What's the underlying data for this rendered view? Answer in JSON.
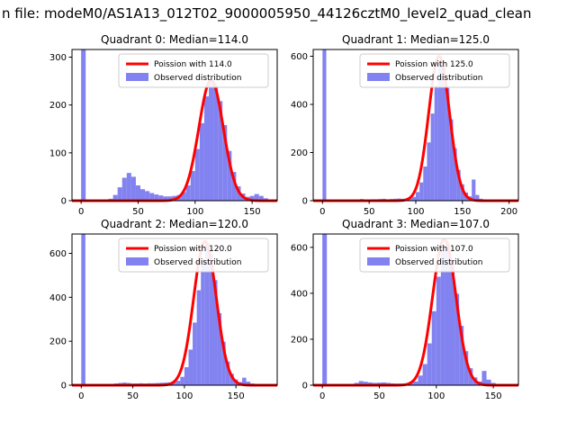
{
  "figure_title": "n file: modeM0/AS1A13_012T02_9000005950_44126cztM0_level2_quad_clean",
  "colors": {
    "background": "#ffffff",
    "hist_fill": "#8282f0",
    "curve": "#ff0000",
    "axes": "#000000",
    "legend_border": "#cccccc"
  },
  "legend": {
    "observed_label": "Observed distribution"
  },
  "chart_data": [
    {
      "type": "bar",
      "title": "Quadrant 0: Median=114.0",
      "median": 114.0,
      "legend_curve_label": "Poission with 114.0",
      "legend_observed_label": "Observed distribution",
      "xlim": [
        -8,
        172
      ],
      "ylim": [
        0,
        316
      ],
      "xticks": [
        0,
        50,
        100,
        150
      ],
      "yticks": [
        0,
        100,
        200,
        300
      ],
      "bin_width": 4,
      "bins": [
        [
          0,
          3000
        ],
        [
          24,
          4
        ],
        [
          28,
          12
        ],
        [
          32,
          28
        ],
        [
          36,
          48
        ],
        [
          40,
          58
        ],
        [
          44,
          50
        ],
        [
          48,
          32
        ],
        [
          52,
          24
        ],
        [
          56,
          20
        ],
        [
          60,
          16
        ],
        [
          64,
          13
        ],
        [
          68,
          11
        ],
        [
          72,
          9
        ],
        [
          76,
          9
        ],
        [
          80,
          10
        ],
        [
          84,
          12
        ],
        [
          88,
          18
        ],
        [
          92,
          32
        ],
        [
          96,
          62
        ],
        [
          100,
          108
        ],
        [
          104,
          162
        ],
        [
          108,
          218
        ],
        [
          112,
          248
        ],
        [
          116,
          243
        ],
        [
          120,
          208
        ],
        [
          124,
          158
        ],
        [
          128,
          104
        ],
        [
          132,
          60
        ],
        [
          136,
          30
        ],
        [
          140,
          15
        ],
        [
          144,
          8
        ],
        [
          148,
          10
        ],
        [
          152,
          14
        ],
        [
          156,
          10
        ],
        [
          160,
          5
        ]
      ],
      "curve": {
        "mu": 114.0,
        "sigma": 10.7,
        "peak": 252
      }
    },
    {
      "type": "bar",
      "title": "Quadrant 1: Median=125.0",
      "median": 125.0,
      "legend_curve_label": "Poission with 125.0",
      "legend_observed_label": "Observed distribution",
      "xlim": [
        -10,
        210
      ],
      "ylim": [
        0,
        628
      ],
      "xticks": [
        0,
        50,
        100,
        150,
        200
      ],
      "yticks": [
        0,
        200,
        400,
        600
      ],
      "bin_width": 4,
      "bins": [
        [
          0,
          3000
        ],
        [
          40,
          7
        ],
        [
          44,
          5
        ],
        [
          48,
          5
        ],
        [
          52,
          6
        ],
        [
          56,
          6
        ],
        [
          60,
          7
        ],
        [
          64,
          8
        ],
        [
          68,
          6
        ],
        [
          72,
          7
        ],
        [
          76,
          8
        ],
        [
          80,
          9
        ],
        [
          84,
          8
        ],
        [
          88,
          9
        ],
        [
          92,
          11
        ],
        [
          96,
          16
        ],
        [
          100,
          36
        ],
        [
          104,
          76
        ],
        [
          108,
          142
        ],
        [
          112,
          242
        ],
        [
          116,
          362
        ],
        [
          120,
          478
        ],
        [
          124,
          572
        ],
        [
          128,
          558
        ],
        [
          132,
          468
        ],
        [
          136,
          338
        ],
        [
          140,
          218
        ],
        [
          144,
          128
        ],
        [
          148,
          68
        ],
        [
          152,
          34
        ],
        [
          156,
          18
        ],
        [
          160,
          88
        ],
        [
          164,
          24
        ],
        [
          168,
          8
        ],
        [
          196,
          3
        ]
      ],
      "curve": {
        "mu": 125.0,
        "sigma": 11.2,
        "peak": 600
      }
    },
    {
      "type": "bar",
      "title": "Quadrant 2: Median=120.0",
      "median": 120.0,
      "legend_curve_label": "Poission with 120.0",
      "legend_observed_label": "Observed distribution",
      "xlim": [
        -9,
        190
      ],
      "ylim": [
        0,
        688
      ],
      "xticks": [
        0,
        50,
        100,
        150
      ],
      "yticks": [
        0,
        200,
        400,
        600
      ],
      "bin_width": 4,
      "bins": [
        [
          0,
          3000
        ],
        [
          28,
          6
        ],
        [
          32,
          8
        ],
        [
          36,
          10
        ],
        [
          40,
          12
        ],
        [
          44,
          10
        ],
        [
          48,
          8
        ],
        [
          52,
          8
        ],
        [
          56,
          9
        ],
        [
          60,
          8
        ],
        [
          64,
          9
        ],
        [
          68,
          9
        ],
        [
          72,
          10
        ],
        [
          76,
          11
        ],
        [
          80,
          12
        ],
        [
          84,
          13
        ],
        [
          88,
          15
        ],
        [
          92,
          20
        ],
        [
          96,
          38
        ],
        [
          100,
          82
        ],
        [
          104,
          162
        ],
        [
          108,
          285
        ],
        [
          112,
          432
        ],
        [
          116,
          572
        ],
        [
          120,
          648
        ],
        [
          124,
          598
        ],
        [
          128,
          478
        ],
        [
          132,
          328
        ],
        [
          136,
          198
        ],
        [
          140,
          108
        ],
        [
          144,
          52
        ],
        [
          148,
          26
        ],
        [
          152,
          14
        ],
        [
          156,
          34
        ],
        [
          160,
          16
        ],
        [
          164,
          8
        ],
        [
          180,
          3
        ]
      ],
      "curve": {
        "mu": 120.0,
        "sigma": 11.0,
        "peak": 655
      }
    },
    {
      "type": "bar",
      "title": "Quadrant 3: Median=107.0",
      "median": 107.0,
      "legend_curve_label": "Poission with 107.0",
      "legend_observed_label": "Observed distribution",
      "xlim": [
        -8,
        172
      ],
      "ylim": [
        0,
        658
      ],
      "xticks": [
        0,
        50,
        100,
        150
      ],
      "yticks": [
        0,
        200,
        400,
        600
      ],
      "bin_width": 4,
      "bins": [
        [
          0,
          3000
        ],
        [
          24,
          5
        ],
        [
          28,
          10
        ],
        [
          32,
          18
        ],
        [
          36,
          15
        ],
        [
          40,
          12
        ],
        [
          44,
          10
        ],
        [
          48,
          11
        ],
        [
          52,
          12
        ],
        [
          56,
          10
        ],
        [
          60,
          8
        ],
        [
          64,
          7
        ],
        [
          68,
          7
        ],
        [
          72,
          8
        ],
        [
          76,
          10
        ],
        [
          80,
          16
        ],
        [
          84,
          42
        ],
        [
          88,
          92
        ],
        [
          92,
          182
        ],
        [
          96,
          322
        ],
        [
          100,
          472
        ],
        [
          104,
          592
        ],
        [
          108,
          622
        ],
        [
          112,
          542
        ],
        [
          116,
          398
        ],
        [
          120,
          258
        ],
        [
          124,
          148
        ],
        [
          128,
          74
        ],
        [
          132,
          34
        ],
        [
          136,
          16
        ],
        [
          140,
          62
        ],
        [
          144,
          24
        ],
        [
          148,
          10
        ],
        [
          152,
          6
        ],
        [
          160,
          3
        ]
      ],
      "curve": {
        "mu": 107.0,
        "sigma": 10.3,
        "peak": 635
      }
    }
  ]
}
